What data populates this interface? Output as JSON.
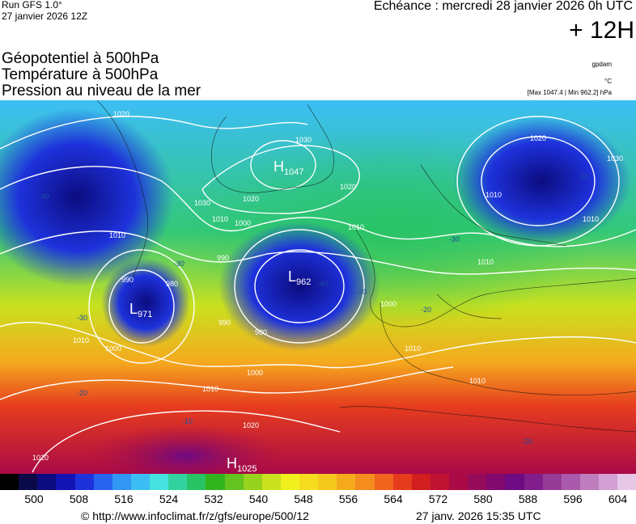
{
  "header": {
    "run_label": "Run GFS 1.0°",
    "run_date": "27 janvier 2026 12Z",
    "echeance": "Echéance : mercredi 28 janvier 2026 0h UTC",
    "lead_time": "+ 12H"
  },
  "titles": {
    "line1": "Géopotentiel à 500hPa",
    "line2": "Température à 500hPa",
    "line3": "Pression au niveau de la mer"
  },
  "units": {
    "geopotential": "gpdam",
    "temperature": "°C",
    "pressure_range": "[Max 1047.4 | Min 962.2] hPa"
  },
  "map": {
    "pressure_centers": [
      {
        "type": "H",
        "value": "1047"
      },
      {
        "type": "L",
        "value": "962"
      },
      {
        "type": "L",
        "value": "971"
      },
      {
        "type": "H",
        "value": "1025"
      }
    ],
    "isobar_labels": [
      "1020",
      "1030",
      "1020",
      "1010",
      "1000",
      "990",
      "1010",
      "1010",
      "1020",
      "1030",
      "990",
      "980",
      "990",
      "980",
      "1000",
      "1010",
      "1020",
      "1010",
      "1000",
      "1010",
      "1010",
      "1010",
      "1020",
      "1030",
      "1010",
      "1000",
      "1010",
      "1020"
    ],
    "temperature_labels": [
      "-40",
      "-40",
      "-40",
      "-30",
      "-30",
      "-30",
      "-20",
      "-20",
      "-10",
      "-20",
      "-20"
    ]
  },
  "colorbar": {
    "tick_labels": [
      "500",
      "508",
      "516",
      "524",
      "532",
      "540",
      "548",
      "556",
      "564",
      "572",
      "580",
      "588",
      "596",
      "604"
    ],
    "colors": [
      "#000000",
      "#0a0a48",
      "#0c0c80",
      "#1414b4",
      "#1e32dc",
      "#2864f0",
      "#3296f5",
      "#3cbef5",
      "#46e1e1",
      "#32d2a0",
      "#28c364",
      "#32b41e",
      "#64c31e",
      "#96d21e",
      "#c8e11e",
      "#f0f01e",
      "#f5dc1e",
      "#f5c81e",
      "#f5aa1e",
      "#f58c1e",
      "#f0641e",
      "#e63c1e",
      "#d21e1e",
      "#be1432",
      "#aa0a46",
      "#960a5a",
      "#820a6e",
      "#6e0a82",
      "#821e8c",
      "#963c96",
      "#aa5aaa",
      "#be7ebe",
      "#d2a0d2",
      "#e6c8e6"
    ]
  },
  "footer": {
    "url": "© http://www.infoclimat.fr/z/gfs/europe/500/12",
    "generated": "27 janv. 2026 15:35 UTC"
  }
}
